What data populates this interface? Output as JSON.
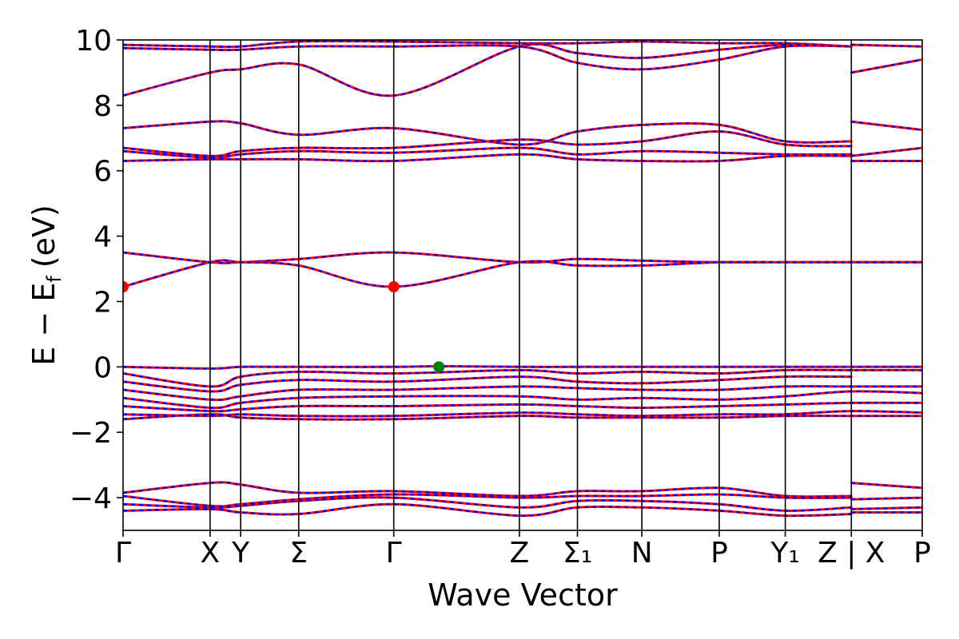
{
  "chart_data": {
    "type": "line",
    "xlabel": "Wave Vector",
    "ylabel_main": "E − E",
    "ylabel_sub": "f",
    "ylabel_unit": "(eV)",
    "ylim": [
      -5,
      10
    ],
    "y_ticks": [
      -4,
      -2,
      0,
      2,
      4,
      6,
      8,
      10
    ],
    "y_tick_labels": [
      "−4",
      "−2",
      "0",
      "2",
      "4",
      "6",
      "8",
      "10"
    ],
    "x_range": [
      0,
      24.8
    ],
    "high_symmetry_points": [
      {
        "label": "Γ",
        "x": 0
      },
      {
        "label": "X",
        "x": 2.7
      },
      {
        "label": "Y",
        "x": 3.65
      },
      {
        "label": "Σ",
        "x": 5.45
      },
      {
        "label": "Γ",
        "x": 8.4
      },
      {
        "label": "Z",
        "x": 12.3
      },
      {
        "label": "Σ₁",
        "x": 14.1
      },
      {
        "label": "N",
        "x": 16.1
      },
      {
        "label": "P",
        "x": 18.5
      },
      {
        "label": "Y₁",
        "x": 20.55
      },
      {
        "label": "Z | X",
        "x": 22.6
      },
      {
        "label": "P",
        "x": 24.8
      }
    ],
    "series_colors": {
      "primary": "#ff0000",
      "secondary": "#0000ff"
    },
    "markers": [
      {
        "x": 0,
        "y": 2.45,
        "color": "#ff0000"
      },
      {
        "x": 8.4,
        "y": 2.45,
        "color": "#ff0000"
      },
      {
        "x": 9.8,
        "y": 0.0,
        "color": "#008000"
      }
    ],
    "bands": [
      [
        [
          0,
          9.85
        ],
        [
          2.7,
          9.8
        ],
        [
          3.65,
          9.8
        ],
        [
          5.45,
          9.95
        ],
        [
          8.4,
          9.95
        ],
        [
          12.3,
          9.9
        ],
        [
          14.1,
          9.9
        ],
        [
          16.1,
          9.95
        ],
        [
          18.5,
          9.9
        ],
        [
          20.55,
          9.9
        ],
        [
          22.6,
          9.8
        ]
      ],
      [
        [
          0,
          9.75
        ],
        [
          2.7,
          9.7
        ],
        [
          3.65,
          9.7
        ],
        [
          5.45,
          9.8
        ],
        [
          8.4,
          9.8
        ],
        [
          12.3,
          9.8
        ],
        [
          14.1,
          9.3
        ],
        [
          16.1,
          9.1
        ],
        [
          18.5,
          9.4
        ],
        [
          20.55,
          9.8
        ],
        [
          22.6,
          9.8
        ]
      ],
      [
        [
          0,
          8.3
        ],
        [
          2.7,
          9.0
        ],
        [
          3.65,
          9.1
        ],
        [
          5.45,
          9.25
        ],
        [
          8.4,
          8.3
        ],
        [
          12.3,
          9.8
        ],
        [
          14.1,
          9.6
        ],
        [
          16.1,
          9.45
        ],
        [
          18.5,
          9.7
        ],
        [
          20.55,
          9.85
        ],
        [
          22.6,
          9.8
        ]
      ],
      [
        [
          22.6,
          9.0
        ],
        [
          24.8,
          9.4
        ]
      ],
      [
        [
          22.6,
          9.85
        ],
        [
          24.8,
          9.8
        ]
      ],
      [
        [
          0,
          7.3
        ],
        [
          2.7,
          7.5
        ],
        [
          3.65,
          7.45
        ],
        [
          5.45,
          7.1
        ],
        [
          8.4,
          7.3
        ],
        [
          12.3,
          6.8
        ],
        [
          14.1,
          7.2
        ],
        [
          16.1,
          7.4
        ],
        [
          18.5,
          7.4
        ],
        [
          20.55,
          6.9
        ],
        [
          22.6,
          6.9
        ]
      ],
      [
        [
          0,
          6.7
        ],
        [
          2.7,
          6.45
        ],
        [
          3.65,
          6.6
        ],
        [
          5.45,
          6.7
        ],
        [
          8.4,
          6.7
        ],
        [
          12.3,
          6.95
        ],
        [
          14.1,
          6.8
        ],
        [
          16.1,
          6.9
        ],
        [
          18.5,
          7.2
        ],
        [
          20.55,
          6.8
        ],
        [
          22.6,
          6.75
        ]
      ],
      [
        [
          0,
          6.6
        ],
        [
          2.7,
          6.4
        ],
        [
          3.65,
          6.5
        ],
        [
          5.45,
          6.6
        ],
        [
          8.4,
          6.55
        ],
        [
          12.3,
          6.7
        ],
        [
          14.1,
          6.5
        ],
        [
          16.1,
          6.6
        ],
        [
          18.5,
          6.55
        ],
        [
          20.55,
          6.5
        ],
        [
          22.6,
          6.5
        ]
      ],
      [
        [
          0,
          6.3
        ],
        [
          2.7,
          6.35
        ],
        [
          3.65,
          6.35
        ],
        [
          5.45,
          6.35
        ],
        [
          8.4,
          6.3
        ],
        [
          12.3,
          6.5
        ],
        [
          14.1,
          6.35
        ],
        [
          16.1,
          6.3
        ],
        [
          18.5,
          6.3
        ],
        [
          20.55,
          6.45
        ],
        [
          22.6,
          6.45
        ]
      ],
      [
        [
          22.6,
          7.5
        ],
        [
          24.8,
          7.25
        ]
      ],
      [
        [
          22.6,
          6.45
        ],
        [
          24.8,
          6.7
        ]
      ],
      [
        [
          22.6,
          6.3
        ],
        [
          24.8,
          6.3
        ]
      ],
      [
        [
          0,
          3.5
        ],
        [
          2.7,
          3.2
        ],
        [
          3.65,
          3.2
        ],
        [
          5.45,
          3.3
        ],
        [
          8.4,
          3.5
        ],
        [
          12.3,
          3.2
        ],
        [
          14.1,
          3.3
        ],
        [
          16.1,
          3.25
        ],
        [
          18.5,
          3.2
        ],
        [
          20.55,
          3.2
        ],
        [
          22.6,
          3.2
        ],
        [
          24.8,
          3.2
        ]
      ],
      [
        [
          0,
          2.45
        ],
        [
          2.7,
          3.2
        ],
        [
          3.65,
          3.2
        ],
        [
          5.45,
          3.1
        ],
        [
          8.4,
          2.45
        ],
        [
          12.3,
          3.2
        ],
        [
          14.1,
          3.1
        ],
        [
          16.1,
          3.1
        ],
        [
          18.5,
          3.2
        ],
        [
          20.55,
          3.2
        ],
        [
          22.6,
          3.2
        ],
        [
          24.8,
          3.2
        ]
      ],
      [
        [
          0,
          0.0
        ],
        [
          2.7,
          -0.05
        ],
        [
          3.65,
          0.0
        ],
        [
          5.45,
          0.0
        ],
        [
          8.4,
          0.0
        ],
        [
          9.8,
          0.02
        ],
        [
          12.3,
          0.0
        ],
        [
          14.1,
          0.0
        ],
        [
          16.1,
          0.0
        ],
        [
          18.5,
          0.0
        ],
        [
          20.55,
          0.0
        ],
        [
          22.6,
          0.0
        ],
        [
          24.8,
          0.0
        ]
      ],
      [
        [
          0,
          -0.2
        ],
        [
          2.7,
          -0.6
        ],
        [
          3.65,
          -0.3
        ],
        [
          5.45,
          -0.15
        ],
        [
          8.4,
          -0.2
        ],
        [
          12.3,
          -0.1
        ],
        [
          14.1,
          -0.2
        ],
        [
          16.1,
          -0.15
        ],
        [
          18.5,
          -0.2
        ],
        [
          20.55,
          -0.1
        ],
        [
          22.6,
          -0.1
        ],
        [
          24.8,
          -0.1
        ]
      ],
      [
        [
          0,
          -0.45
        ],
        [
          2.7,
          -0.75
        ],
        [
          3.65,
          -0.55
        ],
        [
          5.45,
          -0.4
        ],
        [
          8.4,
          -0.45
        ],
        [
          12.3,
          -0.3
        ],
        [
          14.1,
          -0.45
        ],
        [
          16.1,
          -0.5
        ],
        [
          18.5,
          -0.4
        ],
        [
          20.55,
          -0.3
        ],
        [
          22.6,
          -0.3
        ]
      ],
      [
        [
          0,
          -0.7
        ],
        [
          2.7,
          -1.0
        ],
        [
          3.65,
          -0.9
        ],
        [
          5.45,
          -0.7
        ],
        [
          8.4,
          -0.7
        ],
        [
          12.3,
          -0.6
        ],
        [
          14.1,
          -0.65
        ],
        [
          16.1,
          -0.7
        ],
        [
          18.5,
          -0.7
        ],
        [
          20.55,
          -0.6
        ],
        [
          22.6,
          -0.6
        ],
        [
          24.8,
          -0.6
        ]
      ],
      [
        [
          0,
          -0.95
        ],
        [
          2.7,
          -1.25
        ],
        [
          3.65,
          -1.1
        ],
        [
          5.45,
          -0.95
        ],
        [
          8.4,
          -0.9
        ],
        [
          12.3,
          -0.9
        ],
        [
          14.1,
          -1.0
        ],
        [
          16.1,
          -0.95
        ],
        [
          18.5,
          -1.0
        ],
        [
          20.55,
          -0.9
        ],
        [
          22.6,
          -0.75
        ],
        [
          24.8,
          -0.8
        ]
      ],
      [
        [
          0,
          -1.2
        ],
        [
          2.7,
          -1.35
        ],
        [
          3.65,
          -1.3
        ],
        [
          5.45,
          -1.2
        ],
        [
          8.4,
          -1.2
        ],
        [
          12.3,
          -1.15
        ],
        [
          14.1,
          -1.2
        ],
        [
          16.1,
          -1.25
        ],
        [
          18.5,
          -1.2
        ],
        [
          20.55,
          -1.15
        ],
        [
          22.6,
          -1.1
        ],
        [
          24.8,
          -1.1
        ]
      ],
      [
        [
          0,
          -1.45
        ],
        [
          2.7,
          -1.5
        ],
        [
          3.65,
          -1.45
        ],
        [
          5.45,
          -1.5
        ],
        [
          8.4,
          -1.5
        ],
        [
          12.3,
          -1.4
        ],
        [
          14.1,
          -1.45
        ],
        [
          16.1,
          -1.5
        ],
        [
          18.5,
          -1.45
        ],
        [
          20.55,
          -1.45
        ],
        [
          22.6,
          -1.35
        ],
        [
          24.8,
          -1.4
        ]
      ],
      [
        [
          0,
          -1.6
        ],
        [
          2.7,
          -1.45
        ],
        [
          3.65,
          -1.55
        ],
        [
          5.45,
          -1.6
        ],
        [
          8.4,
          -1.6
        ],
        [
          12.3,
          -1.5
        ],
        [
          14.1,
          -1.55
        ],
        [
          16.1,
          -1.55
        ],
        [
          18.5,
          -1.55
        ],
        [
          20.55,
          -1.5
        ],
        [
          22.6,
          -1.5
        ],
        [
          24.8,
          -1.5
        ]
      ],
      [
        [
          0,
          -3.85
        ],
        [
          2.7,
          -3.55
        ],
        [
          3.65,
          -3.6
        ],
        [
          5.45,
          -3.85
        ],
        [
          8.4,
          -3.8
        ],
        [
          12.3,
          -3.95
        ],
        [
          14.1,
          -3.8
        ],
        [
          16.1,
          -3.8
        ],
        [
          18.5,
          -3.7
        ],
        [
          20.55,
          -3.95
        ],
        [
          22.6,
          -3.95
        ]
      ],
      [
        [
          0,
          -3.95
        ],
        [
          2.7,
          -4.25
        ],
        [
          3.65,
          -4.2
        ],
        [
          5.45,
          -4.05
        ],
        [
          8.4,
          -3.9
        ],
        [
          12.3,
          -4.0
        ],
        [
          14.1,
          -3.95
        ],
        [
          16.1,
          -3.95
        ],
        [
          18.5,
          -3.9
        ],
        [
          20.55,
          -4.0
        ],
        [
          22.6,
          -4.0
        ]
      ],
      [
        [
          0,
          -4.2
        ],
        [
          2.7,
          -4.3
        ],
        [
          3.65,
          -4.25
        ],
        [
          5.45,
          -4.1
        ],
        [
          8.4,
          -4.0
        ],
        [
          12.3,
          -4.3
        ],
        [
          14.1,
          -4.1
        ],
        [
          16.1,
          -4.1
        ],
        [
          18.5,
          -4.2
        ],
        [
          20.55,
          -4.4
        ],
        [
          22.6,
          -4.3
        ]
      ],
      [
        [
          0,
          -4.4
        ],
        [
          2.7,
          -4.35
        ],
        [
          3.65,
          -4.45
        ],
        [
          5.45,
          -4.5
        ],
        [
          8.4,
          -4.2
        ],
        [
          12.3,
          -4.55
        ],
        [
          14.1,
          -4.3
        ],
        [
          16.1,
          -4.3
        ],
        [
          18.5,
          -4.4
        ],
        [
          20.55,
          -4.55
        ],
        [
          22.6,
          -4.5
        ]
      ],
      [
        [
          22.6,
          -3.55
        ],
        [
          24.8,
          -3.7
        ]
      ],
      [
        [
          22.6,
          -4.05
        ],
        [
          24.8,
          -4.0
        ]
      ],
      [
        [
          22.6,
          -4.35
        ],
        [
          24.8,
          -4.3
        ]
      ],
      [
        [
          22.6,
          -4.45
        ],
        [
          24.8,
          -4.45
        ]
      ]
    ]
  }
}
